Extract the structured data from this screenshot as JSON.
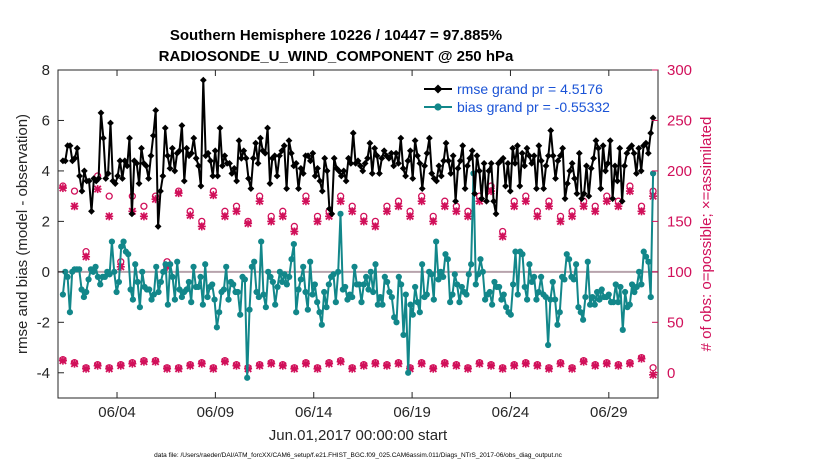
{
  "chart_data": {
    "type": "line",
    "title": "Southern Hemisphere 10226 / 10447 = 97.885%",
    "subtitle": "RADIOSONDE_U_WIND_COMPONENT @ 250 hPa",
    "xlabel": "Jun.01,2017 00:00:00 start",
    "ylabel": "rmse and bias (model - observation)",
    "ylabel_right": "# of obs: o=possible; ×=assimilated",
    "footnote": "data file: /Users/raeder/DAI/ATM_forcXX/CAM6_setup/f.e21.FHIST_BGC.f09_025.CAM6assim.011/Diags_NTrS_2017-06/obs_diag_output.nc",
    "xlim": [
      0,
      30.5
    ],
    "ylim": [
      -5,
      8
    ],
    "ylim_right": [
      -25,
      300
    ],
    "x_ticks": [
      3.0,
      8.0,
      13.0,
      18.0,
      23.0,
      28.0
    ],
    "x_tick_labels": [
      "06/04",
      "06/09",
      "06/14",
      "06/19",
      "06/24",
      "06/29"
    ],
    "y_ticks": [
      -4,
      -2,
      0,
      2,
      4,
      6,
      8
    ],
    "y_ticks_right": [
      0,
      50,
      100,
      150,
      200,
      250,
      300
    ],
    "colors": {
      "rmse": "#000000",
      "bias": "#12878a",
      "obs": "#d1105a",
      "legend_text": "#1a53d6",
      "zero_line": "#b7a3ac"
    },
    "series": [
      {
        "name": "rmse grand pr = 4.5176",
        "axis": "left",
        "marker": "diamond",
        "values": [
          4.4,
          4.4,
          5.0,
          5.0,
          4.4,
          4.5,
          4.9,
          3.8,
          3.2,
          4.0,
          3.6,
          3.6,
          2.4,
          3.7,
          3.6,
          3.7,
          6.3,
          5.3,
          3.7,
          3.9,
          5.9,
          3.6,
          3.5,
          3.8,
          4.4,
          3.7,
          4.4,
          4.2,
          5.3,
          2.3,
          4.4,
          4.3,
          3.5,
          4.9,
          4.3,
          4.2,
          3.7,
          4.6,
          5.4,
          6.4,
          1.8,
          3.2,
          3.8,
          5.7,
          4.6,
          4.1,
          4.9,
          4.0,
          4.7,
          4.8,
          5.8,
          3.6,
          4.9,
          4.6,
          4.7,
          5.3,
          4.5,
          4.2,
          3.4,
          7.6,
          4.6,
          4.7,
          4.4,
          3.8,
          4.8,
          3.8,
          5.7,
          4.2,
          4.6,
          4.3,
          4.3,
          3.9,
          4.1,
          3.6,
          5.2,
          4.5,
          4.8,
          4.5,
          3.7,
          3.3,
          4.5,
          5.1,
          4.3,
          5.3,
          4.8,
          4.7,
          5.7,
          3.5,
          4.5,
          4.6,
          3.8,
          4.6,
          4.8,
          5.0,
          3.3,
          5.2,
          4.7,
          4.2,
          4.3,
          3.3,
          4.1,
          3.9,
          4.6,
          4.6,
          4.4,
          4.7,
          3.8,
          4.1,
          3.6,
          3.2,
          4.5,
          4.0,
          2.5,
          2.3,
          4.5,
          4.1,
          4.0,
          3.8,
          4.0,
          3.6,
          4.5,
          4.3,
          5.5,
          4.3,
          4.4,
          4.2,
          4.0,
          4.3,
          4.5,
          5.1,
          3.9,
          4.9,
          4.6,
          3.9,
          4.5,
          4.8,
          4.6,
          4.5,
          4.7,
          4.2,
          4.7,
          4.3,
          5.3,
          4.1,
          3.8,
          4.4,
          4.8,
          3.7,
          5.2,
          4.6,
          4.3,
          3.3,
          4.2,
          4.7,
          5.3,
          3.9,
          3.7,
          3.6,
          4.2,
          3.8,
          4.4,
          5.1,
          4.4,
          3.9,
          4.6,
          2.8,
          4.1,
          4.4,
          5.0,
          3.3,
          4.2,
          4.5,
          4.8,
          3.1,
          4.6,
          4.0,
          2.9,
          4.3,
          2.8,
          4.0,
          4.3,
          2.8,
          2.3,
          4.3,
          4.4,
          4.5,
          3.4,
          4.3,
          3.2,
          4.9,
          4.3,
          5.0,
          3.4,
          4.7,
          4.2,
          4.9,
          4.6,
          4.3,
          4.6,
          3.3,
          5.0,
          4.4,
          3.3,
          4.2,
          4.6,
          5.6,
          4.6,
          3.7,
          4.4,
          4.6,
          4.9,
          2.9,
          3.5,
          4.0,
          4.3,
          3.7,
          3.1,
          4.7,
          2.9,
          3.1,
          4.2,
          3.0,
          4.1,
          4.5,
          5.2,
          4.9,
          3.3,
          5.0,
          4.0,
          4.3,
          5.2,
          2.9,
          4.2,
          3.6,
          4.9,
          2.8,
          4.2,
          4.7,
          4.9,
          5.0,
          4.7,
          3.9,
          4.9,
          4.0,
          5.0,
          5.1,
          4.7,
          5.5,
          6.1
        ]
      },
      {
        "name": "bias grand pr = -0.55332",
        "axis": "left",
        "marker": "circle",
        "values": [
          -0.9,
          0.0,
          -0.2,
          -1.6,
          0.0,
          0.1,
          0.1,
          0.1,
          -0.7,
          -1.0,
          -0.8,
          -0.3,
          0.1,
          0.0,
          0.2,
          -0.2,
          -0.5,
          -0.2,
          -0.2,
          0.0,
          -0.1,
          1.2,
          0.0,
          -0.8,
          -0.4,
          1.0,
          1.2,
          0.8,
          0.7,
          -0.7,
          -1.1,
          0.3,
          -0.4,
          -1.4,
          0.0,
          -0.6,
          -0.7,
          -0.7,
          -1.1,
          -0.9,
          0.2,
          -0.8,
          -0.4,
          0.0,
          0.3,
          -1.3,
          0.3,
          -0.2,
          -1.1,
          0.4,
          -0.7,
          -1.0,
          -0.8,
          -0.7,
          -0.4,
          -1.2,
          0.2,
          -0.6,
          -0.6,
          -0.2,
          -1.3,
          0.3,
          -1.0,
          -0.6,
          -0.5,
          -1.1,
          -2.2,
          -1.6,
          -0.8,
          -0.7,
          0.2,
          -1.1,
          -0.4,
          -0.5,
          -0.8,
          -0.8,
          -1.7,
          -0.2,
          -0.3,
          -4.2,
          -1.5,
          0.2,
          0.4,
          -0.8,
          -1.0,
          1.2,
          -0.9,
          -1.4,
          0.0,
          -0.2,
          -0.4,
          -1.3,
          -0.6,
          0.0,
          -0.4,
          -0.1,
          -0.5,
          -0.2,
          0.5,
          1.1,
          -1.6,
          -0.7,
          -0.3,
          0.2,
          -0.8,
          -1.5,
          0.4,
          -0.9,
          -0.5,
          -1.2,
          -1.6,
          -2.1,
          -0.8,
          -1.4,
          -0.5,
          -0.2,
          -0.1,
          -1.2,
          0.0,
          2.3,
          -0.7,
          -0.6,
          -1.1,
          -0.9,
          -1.0,
          0.2,
          -0.5,
          -0.5,
          -1.2,
          -0.5,
          -0.2,
          -0.7,
          0.0,
          -0.8,
          0.3,
          -1.3,
          -1.0,
          -1.3,
          -0.2,
          -0.4,
          -0.8,
          -1.0,
          -1.8,
          -2.0,
          -0.2,
          -0.5,
          -2.5,
          -0.9,
          -4.0,
          -1.3,
          -1.7,
          -0.6,
          -1.2,
          -1.6,
          0.3,
          -1.0,
          -0.9,
          0.0,
          -0.1,
          -1.1,
          1.2,
          -0.3,
          0.0,
          -0.2,
          0.7,
          0.5,
          -1.2,
          -0.9,
          -0.1,
          -0.5,
          -1.2,
          -0.6,
          -0.8,
          -0.9,
          -0.1,
          0.3,
          3.9,
          -0.5,
          -0.1,
          0.5,
          0.0,
          -1.1,
          -0.9,
          -0.8,
          -1.3,
          -0.4,
          -0.6,
          -0.6,
          -1.1,
          -0.9,
          -1.4,
          -1.6,
          -1.7,
          -0.5,
          0.8,
          -0.9,
          0.8,
          0.7,
          -0.6,
          -1.1,
          0.3,
          -0.4,
          -0.2,
          -1.1,
          -0.8,
          -0.2,
          -0.9,
          -1.0,
          -2.9,
          -1.1,
          -0.4,
          -1.1,
          -2.1,
          -1.6,
          -0.2,
          -0.3,
          0.7,
          0.5,
          -0.2,
          -0.3,
          0.3,
          -1.4,
          -1.6,
          -1.9,
          -1.0,
          0.4,
          -1.3,
          -1.0,
          -1.3,
          -0.8,
          -1.1,
          -0.7,
          -1.0,
          -1.0,
          -0.9,
          -1.2,
          -1.2,
          -0.5,
          -1.2,
          -0.6,
          -2.3,
          -0.8,
          -1.4,
          -1.3,
          -0.5,
          -0.8,
          -0.6,
          0.0,
          -0.5,
          0.8,
          0.6,
          0.4,
          -1.0,
          3.9
        ]
      },
      {
        "name": "possible",
        "axis": "right",
        "marker": "o",
        "values": [
          185,
          180,
          120,
          195,
          175,
          110,
          175,
          165,
          175,
          110,
          180,
          160,
          150,
          180,
          160,
          165,
          150,
          175,
          155,
          160,
          145,
          175,
          155,
          160,
          175,
          165,
          155,
          150,
          165,
          170,
          160,
          175,
          155,
          170,
          165,
          160,
          175,
          185,
          140,
          170,
          175,
          160,
          170,
          155,
          160,
          170,
          165,
          175,
          170,
          185,
          165,
          180
        ]
      },
      {
        "name": "assimilated",
        "axis": "right",
        "marker": "x",
        "values": [
          183,
          165,
          115,
          182,
          155,
          105,
          160,
          155,
          172,
          105,
          178,
          156,
          145,
          176,
          155,
          160,
          148,
          170,
          150,
          155,
          140,
          170,
          150,
          155,
          170,
          160,
          150,
          145,
          160,
          165,
          155,
          170,
          150,
          165,
          160,
          155,
          170,
          180,
          135,
          165,
          170,
          155,
          165,
          150,
          155,
          165,
          160,
          170,
          165,
          180,
          160,
          175
        ]
      },
      {
        "name": "possible_lower",
        "axis": "right",
        "marker": "o",
        "values": [
          13,
          10,
          5,
          8,
          5,
          8,
          10,
          12,
          12,
          5,
          5,
          8,
          10,
          5,
          12,
          8,
          5,
          8,
          10,
          8,
          5,
          10,
          5,
          10,
          12,
          5,
          8,
          10,
          8,
          10,
          5,
          10,
          5,
          10,
          8,
          5,
          10,
          8,
          5,
          8,
          10,
          8,
          5,
          10,
          5,
          12,
          8,
          10,
          8,
          10,
          15,
          5
        ]
      },
      {
        "name": "assimilated_lower",
        "axis": "right",
        "marker": "x",
        "values": [
          12,
          9,
          4,
          7,
          4,
          7,
          9,
          11,
          11,
          4,
          4,
          7,
          9,
          4,
          11,
          7,
          4,
          7,
          9,
          7,
          4,
          9,
          4,
          9,
          11,
          4,
          7,
          9,
          7,
          9,
          4,
          9,
          4,
          9,
          7,
          4,
          9,
          7,
          4,
          7,
          9,
          7,
          4,
          9,
          4,
          11,
          7,
          9,
          7,
          9,
          14,
          -2
        ]
      }
    ]
  }
}
